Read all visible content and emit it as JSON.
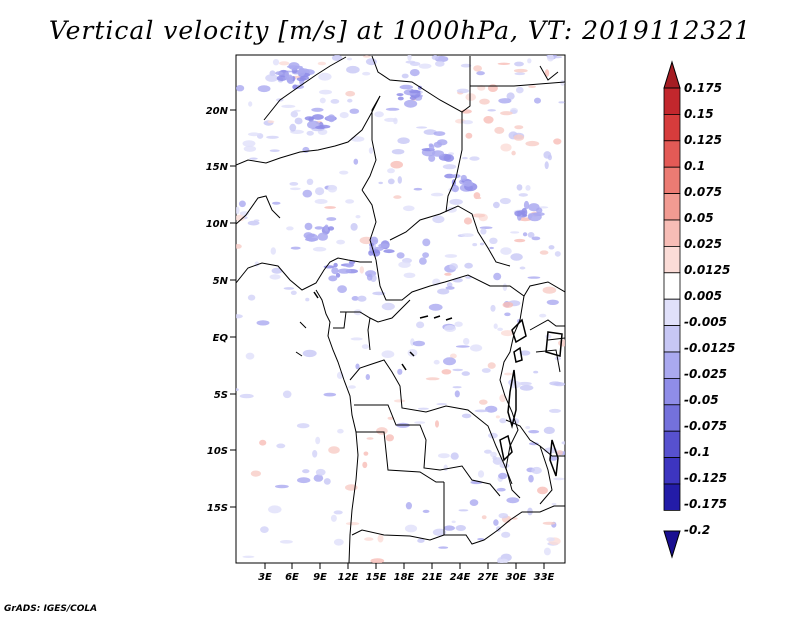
{
  "title": "Vertical velocity [m/s] at 1000hPa, VT: 2019112321",
  "credit": "GrADS: IGES/COLA",
  "map": {
    "lat_labels": [
      "20N",
      "15N",
      "10N",
      "5N",
      "EQ",
      "5S",
      "10S",
      "15S"
    ],
    "lon_labels": [
      "3E",
      "6E",
      "9E",
      "12E",
      "15E",
      "18E",
      "21E",
      "24E",
      "27E",
      "30E",
      "33E"
    ]
  },
  "colorbar": {
    "levels": [
      "0.175",
      "0.15",
      "0.125",
      "0.1",
      "0.075",
      "0.05",
      "0.025",
      "0.0125",
      "0.005",
      "-0.005",
      "-0.0125",
      "-0.025",
      "-0.05",
      "-0.075",
      "-0.1",
      "-0.125",
      "-0.175",
      "-0.2"
    ],
    "colors": [
      "#a51d23",
      "#c2272d",
      "#d63c3c",
      "#e35a56",
      "#ec7b73",
      "#f29b92",
      "#f7bdb6",
      "#fbdcd7",
      "#ffffff",
      "#e0e0fa",
      "#c7c7f5",
      "#aaa9f0",
      "#8f8de8",
      "#7471dc",
      "#5751cf",
      "#3d35c0",
      "#231ca8",
      "#1a0f91"
    ]
  }
}
